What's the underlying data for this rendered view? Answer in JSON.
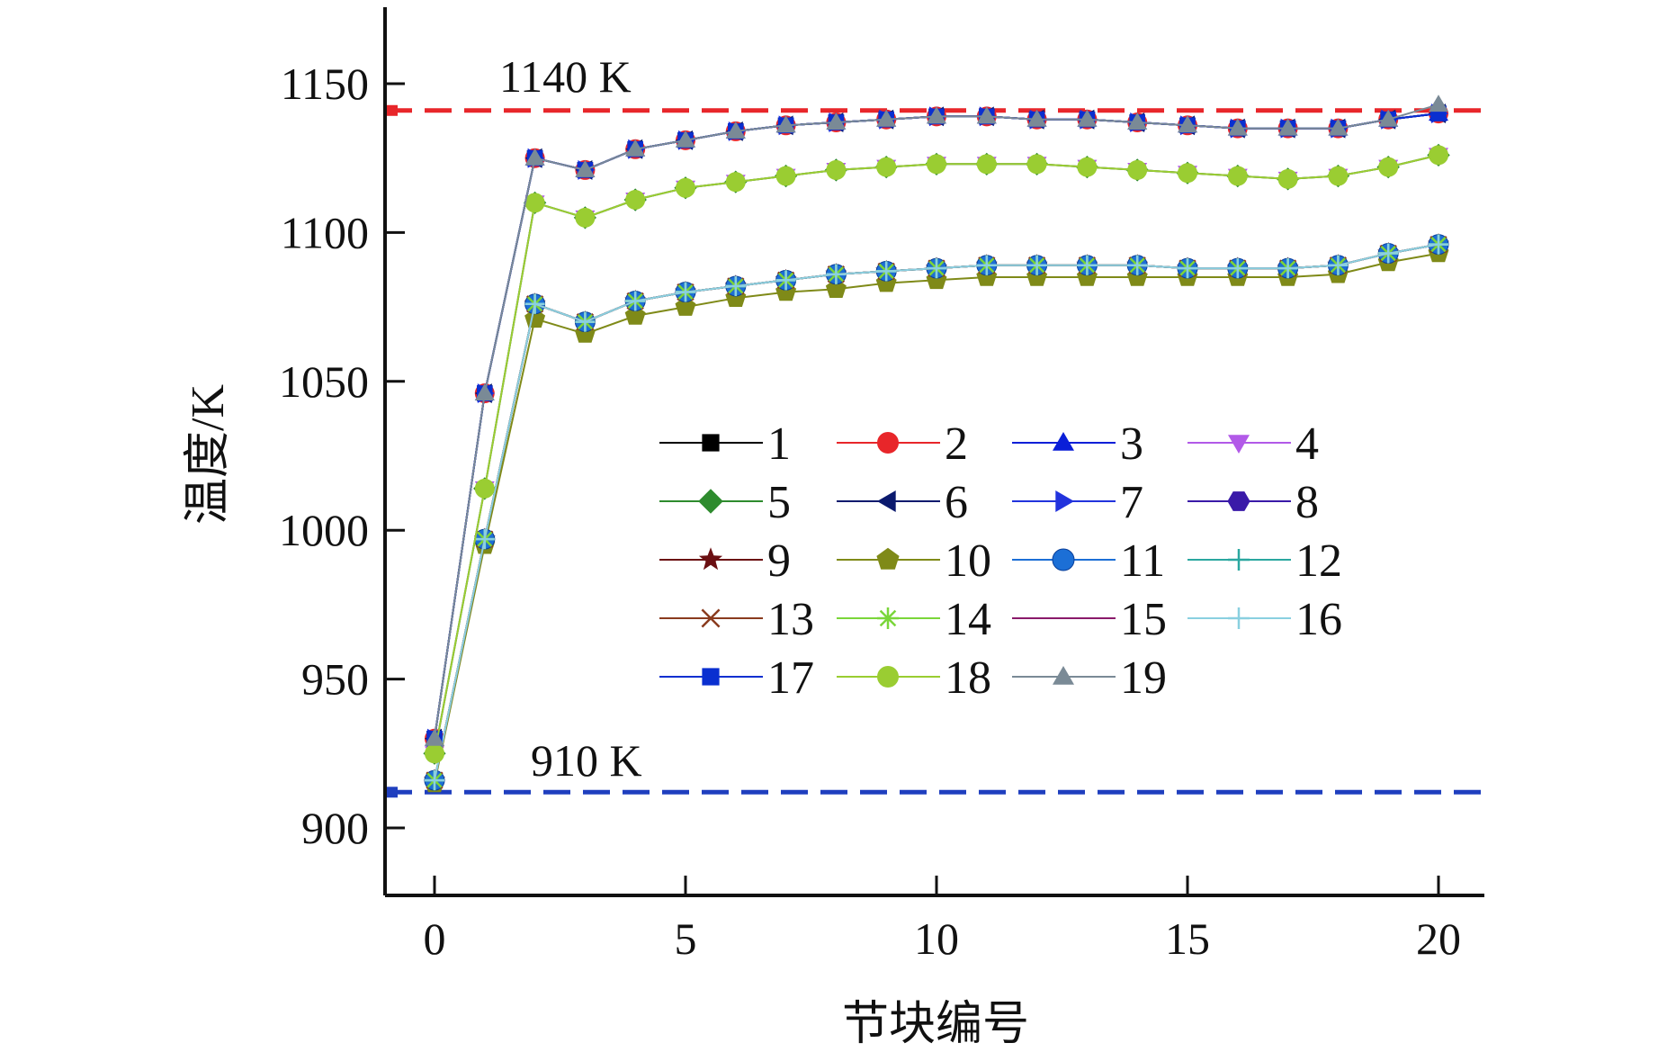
{
  "chart_data": {
    "type": "line",
    "xlabel": "节块编号",
    "ylabel": "温度/K",
    "xlim": [
      -1,
      21
    ],
    "ylim": [
      880,
      1175
    ],
    "xticks": [
      0,
      5,
      10,
      15,
      20
    ],
    "yticks": [
      900,
      950,
      1000,
      1050,
      1100,
      1150
    ],
    "x": [
      0,
      1,
      2,
      3,
      4,
      5,
      6,
      7,
      8,
      9,
      10,
      11,
      12,
      13,
      14,
      15,
      16,
      17,
      18,
      19,
      20
    ],
    "reference_lines": [
      {
        "label": "1140 K",
        "value": 1141,
        "color": "#e8262a"
      },
      {
        "label": "910 K",
        "value": 912,
        "color": "#1f3fbf"
      }
    ],
    "legend": {
      "placement": "center",
      "columns": 4
    },
    "series": [
      {
        "name": "1",
        "color": "#000000",
        "marker": "square",
        "values": [
          930,
          1046,
          1125,
          1121,
          1128,
          1131,
          1134,
          1136,
          1137,
          1138,
          1139,
          1139,
          1138,
          1138,
          1137,
          1136,
          1135,
          1135,
          1135,
          1138,
          1140
        ]
      },
      {
        "name": "2",
        "color": "#e8262a",
        "marker": "circle",
        "values": [
          930,
          1046,
          1125,
          1121,
          1128,
          1131,
          1134,
          1136,
          1137,
          1138,
          1139,
          1139,
          1138,
          1138,
          1137,
          1136,
          1135,
          1135,
          1135,
          1138,
          1140
        ]
      },
      {
        "name": "3",
        "color": "#0a1fd8",
        "marker": "triangle-up",
        "values": [
          930,
          1046,
          1125,
          1121,
          1128,
          1131,
          1134,
          1136,
          1137,
          1138,
          1139,
          1139,
          1138,
          1138,
          1137,
          1136,
          1135,
          1135,
          1135,
          1138,
          1140
        ]
      },
      {
        "name": "4",
        "color": "#b25ae8",
        "marker": "triangle-down",
        "values": [
          925,
          1014,
          1110,
          1105,
          1111,
          1115,
          1117,
          1119,
          1121,
          1122,
          1123,
          1123,
          1123,
          1122,
          1121,
          1120,
          1119,
          1118,
          1119,
          1122,
          1126
        ]
      },
      {
        "name": "5",
        "color": "#2e8b2e",
        "marker": "diamond",
        "values": [
          925,
          1014,
          1110,
          1105,
          1111,
          1115,
          1117,
          1119,
          1121,
          1122,
          1123,
          1123,
          1123,
          1122,
          1121,
          1120,
          1119,
          1118,
          1119,
          1122,
          1126
        ]
      },
      {
        "name": "6",
        "color": "#0b1a6e",
        "marker": "triangle-left",
        "values": [
          930,
          1046,
          1125,
          1121,
          1128,
          1131,
          1134,
          1136,
          1137,
          1138,
          1139,
          1139,
          1138,
          1138,
          1137,
          1136,
          1135,
          1135,
          1135,
          1138,
          1140
        ]
      },
      {
        "name": "7",
        "color": "#2233dd",
        "marker": "triangle-right",
        "values": [
          930,
          1046,
          1125,
          1121,
          1128,
          1131,
          1134,
          1136,
          1137,
          1138,
          1139,
          1139,
          1138,
          1138,
          1137,
          1136,
          1135,
          1135,
          1135,
          1138,
          1140
        ]
      },
      {
        "name": "8",
        "color": "#3a1aa8",
        "marker": "hexagon",
        "values": [
          916,
          997,
          1076,
          1070,
          1077,
          1080,
          1082,
          1084,
          1086,
          1087,
          1088,
          1089,
          1089,
          1089,
          1089,
          1088,
          1088,
          1088,
          1089,
          1093,
          1096
        ]
      },
      {
        "name": "9",
        "color": "#6b0f12",
        "marker": "star",
        "values": [
          916,
          997,
          1076,
          1070,
          1077,
          1080,
          1082,
          1084,
          1086,
          1087,
          1088,
          1089,
          1089,
          1089,
          1089,
          1088,
          1088,
          1088,
          1089,
          1093,
          1096
        ]
      },
      {
        "name": "10",
        "color": "#7f8a18",
        "marker": "pentagon",
        "values": [
          915,
          995,
          1071,
          1066,
          1072,
          1075,
          1078,
          1080,
          1081,
          1083,
          1084,
          1085,
          1085,
          1085,
          1085,
          1085,
          1085,
          1085,
          1086,
          1090,
          1093
        ]
      },
      {
        "name": "11",
        "color": "#1c6fd6",
        "marker": "sphere",
        "values": [
          916,
          997,
          1076,
          1070,
          1077,
          1080,
          1082,
          1084,
          1086,
          1087,
          1088,
          1089,
          1089,
          1089,
          1089,
          1088,
          1088,
          1088,
          1089,
          1093,
          1096
        ]
      },
      {
        "name": "12",
        "color": "#2aa7a0",
        "marker": "plus",
        "values": [
          916,
          997,
          1076,
          1070,
          1077,
          1080,
          1082,
          1084,
          1086,
          1087,
          1088,
          1089,
          1089,
          1089,
          1089,
          1088,
          1088,
          1088,
          1089,
          1093,
          1096
        ]
      },
      {
        "name": "13",
        "color": "#8a3b1e",
        "marker": "x",
        "values": [
          916,
          997,
          1076,
          1070,
          1077,
          1080,
          1082,
          1084,
          1086,
          1087,
          1088,
          1089,
          1089,
          1089,
          1089,
          1088,
          1088,
          1088,
          1089,
          1093,
          1096
        ]
      },
      {
        "name": "14",
        "color": "#7ad63a",
        "marker": "asterisk",
        "values": [
          916,
          997,
          1076,
          1070,
          1077,
          1080,
          1082,
          1084,
          1086,
          1087,
          1088,
          1089,
          1089,
          1089,
          1089,
          1088,
          1088,
          1088,
          1089,
          1093,
          1096
        ]
      },
      {
        "name": "15",
        "color": "#8a1a6a",
        "marker": "none",
        "values": [
          916,
          997,
          1076,
          1070,
          1077,
          1080,
          1082,
          1084,
          1086,
          1087,
          1088,
          1089,
          1089,
          1089,
          1089,
          1088,
          1088,
          1088,
          1089,
          1093,
          1096
        ]
      },
      {
        "name": "16",
        "color": "#8ad0e0",
        "marker": "plus",
        "values": [
          916,
          997,
          1076,
          1070,
          1077,
          1080,
          1082,
          1084,
          1086,
          1087,
          1088,
          1089,
          1089,
          1089,
          1089,
          1088,
          1088,
          1088,
          1089,
          1093,
          1096
        ]
      },
      {
        "name": "17",
        "color": "#0a2fd0",
        "marker": "square",
        "values": [
          930,
          1046,
          1125,
          1121,
          1128,
          1131,
          1134,
          1136,
          1137,
          1138,
          1139,
          1139,
          1138,
          1138,
          1137,
          1136,
          1135,
          1135,
          1135,
          1138,
          1140
        ]
      },
      {
        "name": "18",
        "color": "#9acd32",
        "marker": "circle",
        "values": [
          925,
          1014,
          1110,
          1105,
          1111,
          1115,
          1117,
          1119,
          1121,
          1122,
          1123,
          1123,
          1123,
          1122,
          1121,
          1120,
          1119,
          1118,
          1119,
          1122,
          1126
        ]
      },
      {
        "name": "19",
        "color": "#7a8a96",
        "marker": "triangle-up",
        "values": [
          930,
          1046,
          1125,
          1121,
          1128,
          1131,
          1134,
          1136,
          1137,
          1138,
          1139,
          1139,
          1138,
          1138,
          1137,
          1136,
          1135,
          1135,
          1135,
          1138,
          1143
        ]
      }
    ]
  }
}
